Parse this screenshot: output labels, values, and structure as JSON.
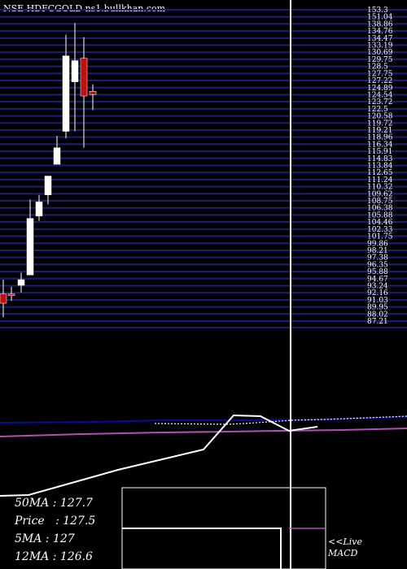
{
  "header": {
    "title": "NSE HDFCGOLD ns1.bullkhan.com"
  },
  "price_axis": {
    "labels": [
      "153.3",
      "151.04",
      "138.86",
      "134.76",
      "134.47",
      "133.19",
      "130.69",
      "129.75",
      "128.5",
      "127.75",
      "127.22",
      "124.89",
      "124.54",
      "123.72",
      "122.5",
      "120.58",
      "119.72",
      "119.21",
      "118.96",
      "116.34",
      "115.91",
      "114.83",
      "113.84",
      "112.65",
      "111.24",
      "110.32",
      "109.62",
      "108.75",
      "106.38",
      "105.88",
      "104.46",
      "102.33",
      "101.75",
      "99.86",
      "98.21",
      "97.38",
      "96.35",
      "95.88",
      "94.67",
      "93.24",
      "92.16",
      "91.03",
      "89.95",
      "88.02",
      "87.21"
    ],
    "grid_color": "#1e1e7a"
  },
  "chart_data": [
    {
      "type": "candlestick",
      "title": "NSE HDFCGOLD",
      "candles": [
        {
          "open": 93.0,
          "high": 96.0,
          "low": 88.0,
          "close": 91.0,
          "color": "red"
        },
        {
          "open": 93.0,
          "high": 94.5,
          "low": 91.5,
          "close": 92.6,
          "color": "red"
        },
        {
          "open": 94.8,
          "high": 97.5,
          "low": 93.3,
          "close": 96.0,
          "color": "white"
        },
        {
          "open": 97.0,
          "high": 113.0,
          "low": 97.0,
          "close": 109.0,
          "color": "white"
        },
        {
          "open": 109.5,
          "high": 114.0,
          "low": 108.5,
          "close": 112.5,
          "color": "white"
        },
        {
          "open": 114.0,
          "high": 118.0,
          "low": 112.0,
          "close": 118.0,
          "color": "white"
        },
        {
          "open": 120.5,
          "high": 126.5,
          "low": 120.5,
          "close": 124.0,
          "color": "white"
        },
        {
          "open": 127.5,
          "high": 148.0,
          "low": 126.0,
          "close": 143.5,
          "color": "white"
        },
        {
          "open": 142.5,
          "high": 150.5,
          "low": 127.5,
          "close": 138.0,
          "color": "white"
        },
        {
          "open": 143.0,
          "high": 147.5,
          "low": 124.0,
          "close": 135.0,
          "color": "red"
        },
        {
          "open": 136.0,
          "high": 137.5,
          "low": 132.0,
          "close": 135.3,
          "color": "red"
        }
      ]
    },
    {
      "type": "line",
      "series": [
        {
          "points": [
            [
              0,
              520
            ],
            [
              120,
              519
            ],
            [
              200,
              517
            ],
            [
              300,
              517
            ],
            [
              400,
              516
            ],
            [
              500,
              513
            ]
          ],
          "color": "#0a0aa0"
        },
        {
          "points": [
            [
              190,
              521
            ],
            [
              280,
              522
            ],
            [
              300,
              521
            ],
            [
              360,
              517
            ],
            [
              400,
              516
            ],
            [
              500,
              512
            ]
          ],
          "color": "#ffffff",
          "dashed": true
        },
        {
          "points": [
            [
              0,
              537
            ],
            [
              100,
              534
            ],
            [
              200,
              532
            ],
            [
              280,
              531
            ],
            [
              340,
              530
            ],
            [
              420,
              529
            ],
            [
              500,
              527
            ]
          ],
          "color": "#b050b0"
        },
        {
          "points": [
            [
              0,
              610
            ],
            [
              35,
              609
            ],
            [
              145,
              578
            ],
            [
              250,
              553
            ],
            [
              287,
              511
            ],
            [
              320,
              512
            ],
            [
              355,
              530
            ],
            [
              390,
              525
            ]
          ],
          "color": "#ffffff"
        }
      ]
    }
  ],
  "cursor_line": {
    "x": 357,
    "color": "#ffffff"
  },
  "macd": {
    "label": "<<Live MACD",
    "label_line1": "<<Live",
    "label_line2": "MACD",
    "line_color": "#b050b0"
  },
  "stats": {
    "ma50": "50MA : 127.7",
    "price": "Price   : 127.5",
    "ma5": "5MA : 127",
    "ma12": "12MA : 126.6"
  }
}
